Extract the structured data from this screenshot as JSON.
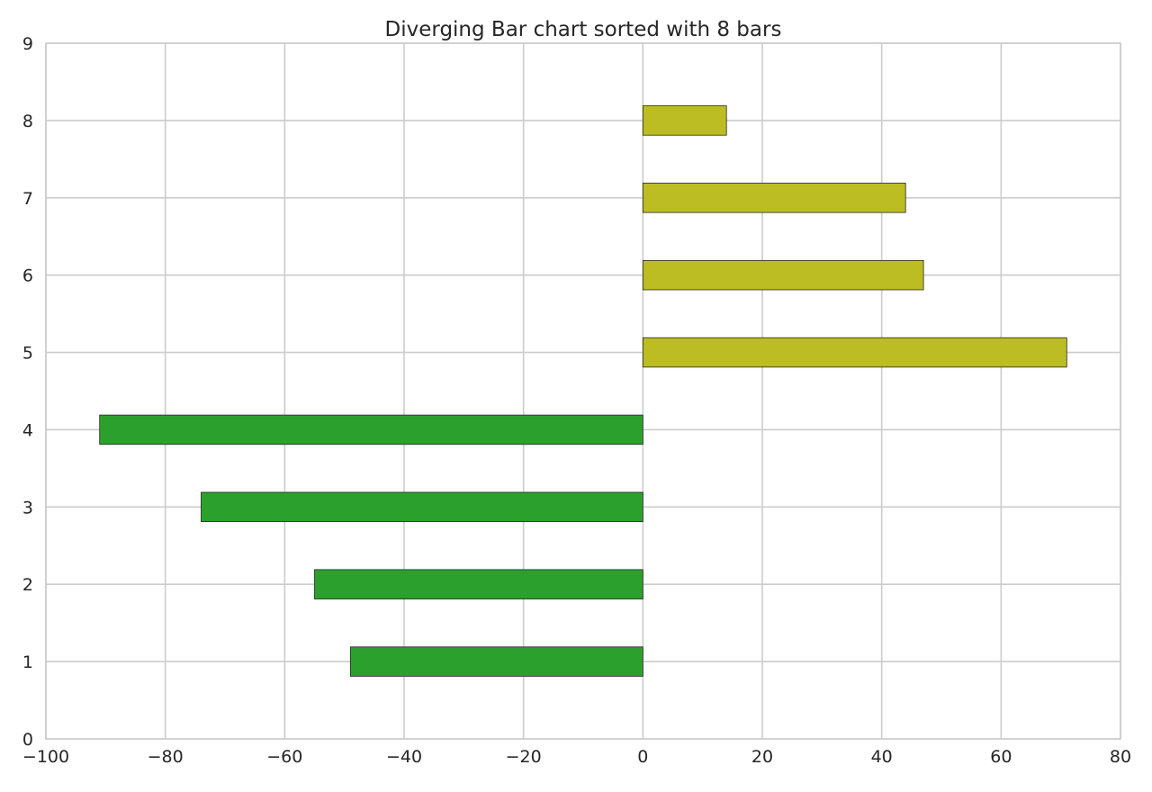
{
  "chart_data": {
    "type": "bar",
    "orientation": "horizontal",
    "title": "Diverging Bar chart sorted with 8 bars",
    "xlabel": "",
    "ylabel": "",
    "xlim": [
      -100,
      80
    ],
    "ylim": [
      0,
      9
    ],
    "x_ticks": [
      -100,
      -80,
      -60,
      -40,
      -20,
      0,
      20,
      40,
      60,
      80
    ],
    "x_tick_labels": [
      "−100",
      "−80",
      "−60",
      "−40",
      "−20",
      "0",
      "20",
      "40",
      "60",
      "80"
    ],
    "y_ticks": [
      0,
      1,
      2,
      3,
      4,
      5,
      6,
      7,
      8,
      9
    ],
    "y_tick_labels": [
      "0",
      "1",
      "2",
      "3",
      "4",
      "5",
      "6",
      "7",
      "8",
      "9"
    ],
    "grid": true,
    "categories": [
      1,
      2,
      3,
      4,
      5,
      6,
      7,
      8
    ],
    "values": [
      -49,
      -55,
      -74,
      -91,
      71,
      47,
      44,
      14
    ],
    "colors": {
      "negative": "#2ca02c",
      "positive": "#bcbd22"
    }
  }
}
